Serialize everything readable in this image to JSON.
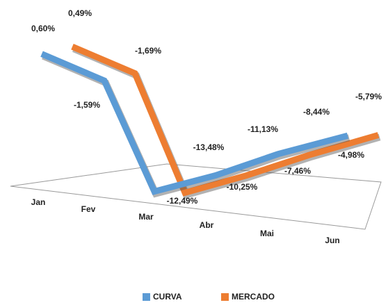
{
  "chart_data": {
    "type": "line",
    "categories": [
      "Jan",
      "Fev",
      "Mar",
      "Abr",
      "Mai",
      "Jun"
    ],
    "series": [
      {
        "name": "CURVA",
        "color": "#5b9bd5",
        "values": [
          0.6,
          -1.59,
          -12.49,
          -10.25,
          -7.46,
          -4.98
        ],
        "value_labels": [
          "0,60%",
          "-1,59%",
          "-12,49%",
          "-10,25%",
          "-7,46%",
          "-4,98%"
        ]
      },
      {
        "name": "MERCADO",
        "color": "#ed7d31",
        "values": [
          0.49,
          -1.69,
          -13.48,
          -11.13,
          -8.44,
          -5.79
        ],
        "value_labels": [
          "0,49%",
          "-1,69%",
          "-13,48%",
          "-11,13%",
          "-8,44%",
          "-5,79%"
        ]
      }
    ],
    "legend": "bottom"
  }
}
